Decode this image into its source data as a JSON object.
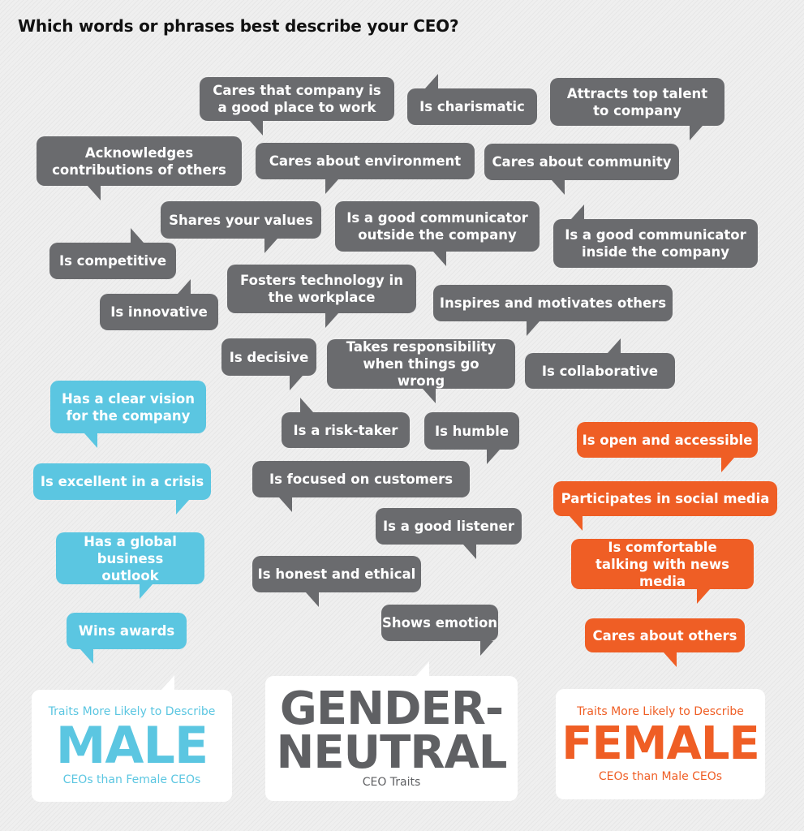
{
  "title": "Which words or phrases best describe your CEO?",
  "colors": {
    "neutral": "#6a6b6e",
    "male": "#5bc6e1",
    "female": "#ef5e25"
  },
  "neutral_traits": [
    "Cares that company is a good place to work",
    "Is charismatic",
    "Attracts top talent to company",
    "Acknowledges contributions of others",
    "Cares about environment",
    "Cares about community",
    "Shares your values",
    "Is a good communicator outside the company",
    "Is a good communicator inside the company",
    "Is competitive",
    "Fosters technology in the workplace",
    "Is innovative",
    "Inspires and motivates others",
    "Is decisive",
    "Takes responsibility when things go wrong",
    "Is collaborative",
    "Is a risk-taker",
    "Is humble",
    "Is focused on customers",
    "Is a good listener",
    "Is honest and ethical",
    "Shows emotion"
  ],
  "male_traits": [
    "Has a clear vision for the company",
    "Is excellent in a crisis",
    "Has a global business outlook",
    "Wins awards"
  ],
  "female_traits": [
    "Is open and accessible",
    "Participates in social media",
    "Is comfortable talking with news media",
    "Cares about others"
  ],
  "legend": {
    "male": {
      "top": "Traits More Likely to Describe",
      "big": "MALE",
      "bottom": "CEOs than Female CEOs"
    },
    "neutral": {
      "big_line1": "GENDER-",
      "big_line2": "NEUTRAL",
      "bottom": "CEO Traits"
    },
    "female": {
      "top": "Traits More Likely to Describe",
      "big": "FEMALE",
      "bottom": "CEOs than Male CEOs"
    }
  }
}
